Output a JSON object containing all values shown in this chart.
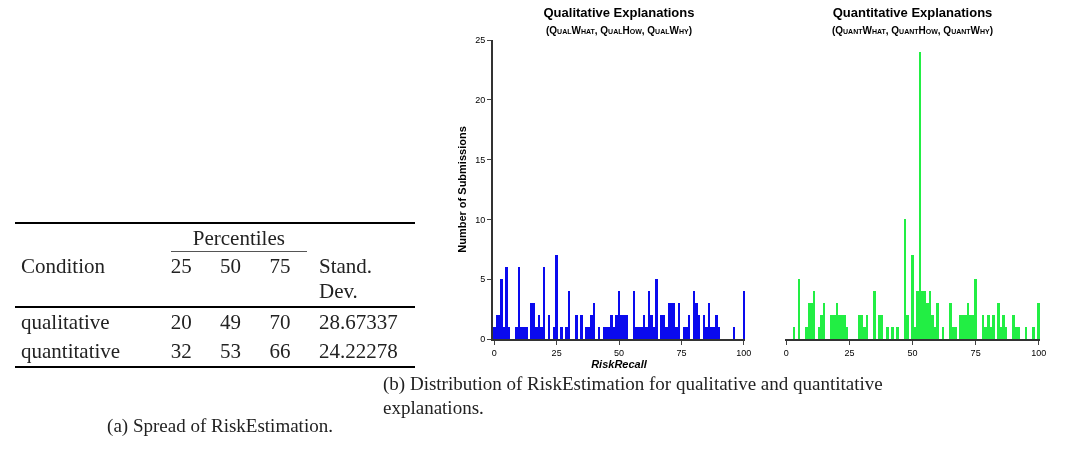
{
  "chart_data": [
    {
      "type": "other",
      "ylabel": "Condition",
      "categories": [
        "25",
        "50",
        "75",
        "Stand. Dev."
      ],
      "y_categories": [
        "qualitative",
        "quantitative"
      ],
      "cell_labels": [
        [
          "20",
          "49",
          "70",
          "28.67337"
        ],
        [
          "32",
          "53",
          "66",
          "24.22278"
        ]
      ],
      "annotations": [
        "Percentiles",
        "(a) Spread of RiskEstimation."
      ]
    },
    {
      "type": "histogram",
      "title": "Qualitative Explanations",
      "subtitle": "(QualWhat, QualHow, QualWhy)",
      "xlabel": "RiskRecall",
      "ylabel": "Number of Submissions",
      "color": "#0a0aee",
      "bins": [
        -0.5,
        0.5,
        1.5,
        2.5,
        3.5,
        4.5,
        5.5,
        6.5,
        7.5,
        8.5,
        9.5,
        10.5,
        11.5,
        12.5,
        13.5,
        14.5,
        15.5,
        16.5,
        17.5,
        18.5,
        19.5,
        20.5,
        21.5,
        22.5,
        23.5,
        24.5,
        25.5,
        26.5,
        27.5,
        28.5,
        29.5,
        30.5,
        31.5,
        32.5,
        33.5,
        34.5,
        35.5,
        36.5,
        37.5,
        38.5,
        39.5,
        40.5,
        41.5,
        42.5,
        43.5,
        44.5,
        45.5,
        46.5,
        47.5,
        48.5,
        49.5,
        50.5,
        51.5,
        52.5,
        53.5,
        54.5,
        55.5,
        56.5,
        57.5,
        58.5,
        59.5,
        60.5,
        61.5,
        62.5,
        63.5,
        64.5,
        65.5,
        66.5,
        67.5,
        68.5,
        69.5,
        70.5,
        71.5,
        72.5,
        73.5,
        74.5,
        75.5,
        76.5,
        77.5,
        78.5,
        79.5,
        80.5,
        81.5,
        82.5,
        83.5,
        84.5,
        85.5,
        86.5,
        87.5,
        88.5,
        89.5,
        90.5,
        91.5,
        92.5,
        93.5,
        94.5,
        95.5,
        96.5,
        97.5,
        98.5,
        99.5,
        100.5
      ],
      "values": [
        1,
        2,
        2,
        5,
        1,
        6,
        1,
        0,
        0,
        1,
        6,
        1,
        1,
        1,
        0,
        3,
        3,
        1,
        2,
        1,
        6,
        0,
        2,
        0,
        1,
        7,
        0,
        1,
        0,
        1,
        4,
        0,
        0,
        2,
        0,
        2,
        0,
        1,
        1,
        2,
        3,
        0,
        1,
        0,
        1,
        1,
        1,
        2,
        1,
        2,
        4,
        2,
        2,
        2,
        0,
        0,
        4,
        1,
        1,
        1,
        2,
        1,
        4,
        2,
        1,
        5,
        0,
        2,
        2,
        1,
        3,
        3,
        3,
        1,
        3,
        0,
        1,
        1,
        2,
        0,
        4,
        3,
        2,
        0,
        2,
        1,
        3,
        1,
        1,
        2,
        1,
        0,
        0,
        0,
        0,
        0,
        1,
        0,
        0,
        0,
        4
      ],
      "xlim": [
        -0.5,
        100.5
      ],
      "xticks": [
        0,
        25,
        50,
        75,
        100
      ],
      "ylim": [
        0,
        25
      ],
      "yticks": [
        0,
        5,
        10,
        15,
        20,
        25
      ]
    },
    {
      "type": "histogram",
      "title": "Quantitative Explanations",
      "subtitle": "(QuantWhat, QuantHow, QuantWhy)",
      "color": "#22ee44",
      "bins": [
        -0.5,
        0.5,
        1.5,
        2.5,
        3.5,
        4.5,
        5.5,
        6.5,
        7.5,
        8.5,
        9.5,
        10.5,
        11.5,
        12.5,
        13.5,
        14.5,
        15.5,
        16.5,
        17.5,
        18.5,
        19.5,
        20.5,
        21.5,
        22.5,
        23.5,
        24.5,
        25.5,
        26.5,
        27.5,
        28.5,
        29.5,
        30.5,
        31.5,
        32.5,
        33.5,
        34.5,
        35.5,
        36.5,
        37.5,
        38.5,
        39.5,
        40.5,
        41.5,
        42.5,
        43.5,
        44.5,
        45.5,
        46.5,
        47.5,
        48.5,
        49.5,
        50.5,
        51.5,
        52.5,
        53.5,
        54.5,
        55.5,
        56.5,
        57.5,
        58.5,
        59.5,
        60.5,
        61.5,
        62.5,
        63.5,
        64.5,
        65.5,
        66.5,
        67.5,
        68.5,
        69.5,
        70.5,
        71.5,
        72.5,
        73.5,
        74.5,
        75.5,
        76.5,
        77.5,
        78.5,
        79.5,
        80.5,
        81.5,
        82.5,
        83.5,
        84.5,
        85.5,
        86.5,
        87.5,
        88.5,
        89.5,
        90.5,
        91.5,
        92.5,
        93.5,
        94.5,
        95.5,
        96.5,
        97.5,
        98.5,
        99.5,
        100.5
      ],
      "values": [
        0,
        0,
        0,
        1,
        0,
        5,
        0,
        0,
        1,
        3,
        3,
        4,
        0,
        1,
        2,
        3,
        0,
        0,
        2,
        2,
        3,
        2,
        2,
        2,
        1,
        0,
        0,
        0,
        0,
        2,
        2,
        1,
        2,
        0,
        0,
        4,
        0,
        2,
        2,
        0,
        1,
        0,
        1,
        0,
        1,
        0,
        0,
        10,
        2,
        0,
        7,
        1,
        4,
        24,
        4,
        4,
        3,
        4,
        2,
        1,
        3,
        0,
        1,
        0,
        0,
        3,
        1,
        1,
        0,
        2,
        2,
        2,
        3,
        2,
        2,
        5,
        0,
        0,
        2,
        1,
        2,
        1,
        2,
        0,
        3,
        1,
        2,
        1,
        0,
        0,
        2,
        1,
        1,
        0,
        0,
        1,
        0,
        0,
        1,
        0,
        3
      ],
      "xlim": [
        -0.5,
        100.5
      ],
      "xticks": [
        0,
        25,
        50,
        75,
        100
      ],
      "ylim": [
        0,
        25
      ],
      "tick_labels": "x",
      "annotations": [
        "(b) Distribution of RiskEstimation for qualitative and quantitative explanations."
      ]
    }
  ]
}
